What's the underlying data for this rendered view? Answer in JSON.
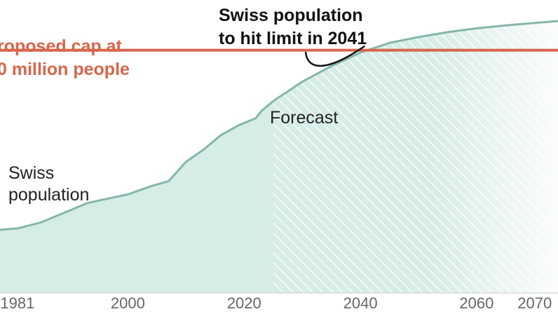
{
  "chart_data": {
    "type": "area",
    "title": "",
    "xlabel": "",
    "ylabel": "",
    "xlim": [
      1978,
      2074
    ],
    "ylim": [
      5.0,
      10.6
    ],
    "x_tick_labels": [
      "1981",
      "2000",
      "2020",
      "2040",
      "2060",
      "2070"
    ],
    "x_ticks": [
      1981,
      2000,
      2020,
      2040,
      2060,
      2070
    ],
    "grid": false,
    "annotations": {
      "cap_label_line1": "roposed cap at",
      "cap_label_line2": "0 million people",
      "callout_line1": "Swiss population",
      "callout_line2": "to hit limit in 2041",
      "population_label_line1": "Swiss",
      "population_label_line2": "population",
      "forecast_label": "Forecast"
    },
    "cap": {
      "value": 10.0
    },
    "forecast_start": 2025,
    "series": [
      {
        "values_x": [
          1978,
          1981,
          1985,
          1990,
          1993,
          1996,
          2000,
          2004,
          2007,
          2010,
          2013,
          2016,
          2019,
          2022,
          2023,
          2025,
          2030,
          2035,
          2040,
          2045,
          2050,
          2055,
          2060,
          2065,
          2070,
          2074
        ],
        "values_y": [
          6.3,
          6.33,
          6.45,
          6.7,
          6.85,
          6.93,
          7.03,
          7.2,
          7.3,
          7.7,
          7.95,
          8.25,
          8.45,
          8.6,
          8.75,
          8.95,
          9.35,
          9.67,
          9.95,
          10.15,
          10.27,
          10.37,
          10.45,
          10.51,
          10.56,
          10.6
        ]
      }
    ],
    "colors": {
      "area_fill": "#d6ece7",
      "area_line": "#84b6aa",
      "cap_line": "#d7664b",
      "cap_text": "#d7664b",
      "hatch": "#ffffff",
      "tick_text": "#666666",
      "axis_line": "#cccccc"
    }
  }
}
